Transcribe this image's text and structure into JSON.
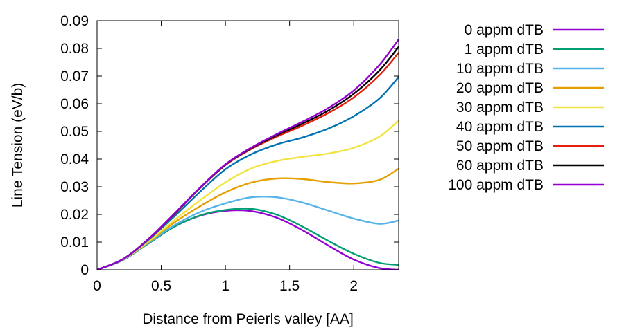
{
  "chart_data": {
    "type": "line",
    "xlabel": "Distance from Peierls valley [AA]",
    "ylabel": "Line Tension (eV/b)",
    "xlim": [
      0,
      2.35
    ],
    "ylim": [
      0,
      0.09
    ],
    "xticks": [
      0,
      0.5,
      1,
      1.5,
      2
    ],
    "xtick_labels": [
      "0",
      "0.5",
      "1",
      "1.5",
      "2"
    ],
    "yticks": [
      0,
      0.01,
      0.02,
      0.03,
      0.04,
      0.05,
      0.06,
      0.07,
      0.08,
      0.09
    ],
    "ytick_labels": [
      "0",
      "0.01",
      "0.02",
      "0.03",
      "0.04",
      "0.05",
      "0.06",
      "0.07",
      "0.08",
      "0.09"
    ],
    "grid": false,
    "legend_position": "outside-right",
    "x": [
      0,
      0.2,
      0.4,
      0.6,
      0.8,
      1.0,
      1.2,
      1.4,
      1.6,
      1.8,
      2.0,
      2.2,
      2.35
    ],
    "series": [
      {
        "name": "0 appm dTB",
        "color": "#9400d3",
        "values": [
          0,
          0.0035,
          0.0095,
          0.0155,
          0.0195,
          0.0213,
          0.0212,
          0.0188,
          0.0143,
          0.0088,
          0.0037,
          0.0006,
          0.0
        ]
      },
      {
        "name": "1 appm dTB",
        "color": "#009e73",
        "values": [
          0,
          0.0035,
          0.0095,
          0.0155,
          0.0196,
          0.0216,
          0.022,
          0.0199,
          0.0156,
          0.0105,
          0.0058,
          0.0025,
          0.0018
        ]
      },
      {
        "name": "10 appm dTB",
        "color": "#56b4e9",
        "values": [
          0,
          0.0036,
          0.0097,
          0.016,
          0.0208,
          0.024,
          0.0262,
          0.0262,
          0.0243,
          0.0214,
          0.0185,
          0.0166,
          0.0178
        ]
      },
      {
        "name": "20 appm dTB",
        "color": "#e69f00",
        "values": [
          0,
          0.0037,
          0.01,
          0.017,
          0.0229,
          0.028,
          0.0315,
          0.033,
          0.0328,
          0.0317,
          0.0312,
          0.0325,
          0.0366
        ]
      },
      {
        "name": "30 appm dTB",
        "color": "#f0e442",
        "values": [
          0,
          0.0037,
          0.0102,
          0.0178,
          0.025,
          0.0316,
          0.0366,
          0.0393,
          0.0408,
          0.042,
          0.0441,
          0.0481,
          0.054
        ]
      },
      {
        "name": "40 appm dTB",
        "color": "#0072b2",
        "values": [
          0,
          0.0038,
          0.0108,
          0.0192,
          0.0281,
          0.0363,
          0.0417,
          0.0453,
          0.0478,
          0.051,
          0.0555,
          0.0619,
          0.0697
        ]
      },
      {
        "name": "50 appm dTB",
        "color": "#e51e10",
        "values": [
          0,
          0.0038,
          0.011,
          0.02,
          0.0294,
          0.0378,
          0.0436,
          0.0481,
          0.0521,
          0.0566,
          0.0623,
          0.0703,
          0.0785
        ]
      },
      {
        "name": "60 appm dTB",
        "color": "#000000",
        "values": [
          0,
          0.0038,
          0.0111,
          0.0201,
          0.0295,
          0.038,
          0.0439,
          0.0486,
          0.0528,
          0.0575,
          0.0636,
          0.072,
          0.0806
        ]
      },
      {
        "name": "100 appm dTB",
        "color": "#9400d3",
        "values": [
          0,
          0.0038,
          0.0111,
          0.0202,
          0.0296,
          0.0381,
          0.0441,
          0.049,
          0.0535,
          0.0584,
          0.0648,
          0.074,
          0.0833
        ]
      }
    ]
  }
}
